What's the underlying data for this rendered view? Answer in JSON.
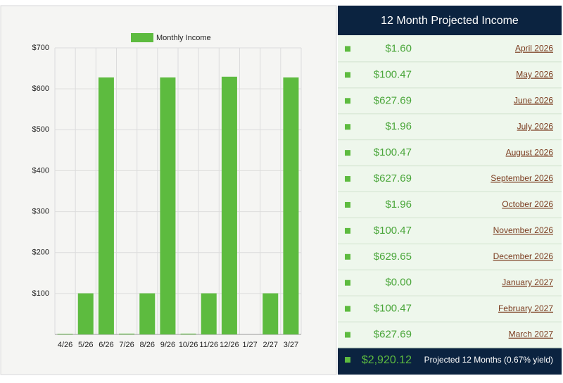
{
  "chart_data": {
    "type": "bar",
    "categories": [
      "4/26",
      "5/26",
      "6/26",
      "7/26",
      "8/26",
      "9/26",
      "10/26",
      "11/26",
      "12/26",
      "1/27",
      "2/27",
      "3/27"
    ],
    "series": [
      {
        "name": "Monthly Income",
        "color": "#5dbb3f",
        "values": [
          1.6,
          100.47,
          627.69,
          1.96,
          100.47,
          627.69,
          1.96,
          100.47,
          629.65,
          0.0,
          100.47,
          627.69
        ],
        "value_labels": [
          "$1.60",
          "$100.47",
          "$627.69",
          "$1.96",
          "$100.47",
          "$627.69",
          "$1.96",
          "$100.47",
          "$629.65",
          "$0.00",
          "$100.47",
          "$627.69"
        ]
      }
    ],
    "ylim": [
      0,
      700
    ],
    "yticks": [
      {
        "value": 100,
        "label": "$100"
      },
      {
        "value": 200,
        "label": "$200"
      },
      {
        "value": 300,
        "label": "$300"
      },
      {
        "value": 400,
        "label": "$400"
      },
      {
        "value": 500,
        "label": "$500"
      },
      {
        "value": 600,
        "label": "$600"
      },
      {
        "value": 700,
        "label": "$700"
      }
    ],
    "grid": true,
    "legend": "top"
  },
  "table": {
    "title": "12 Month Projected Income",
    "months": [
      "April 2026",
      "May 2026",
      "June 2026",
      "July 2026",
      "August 2026",
      "September 2026",
      "October 2026",
      "November 2026",
      "December 2026",
      "January 2027",
      "February 2027",
      "March 2027"
    ],
    "total": "$2,920.12",
    "total_label": "Projected 12 Months (0.67% yield)"
  }
}
